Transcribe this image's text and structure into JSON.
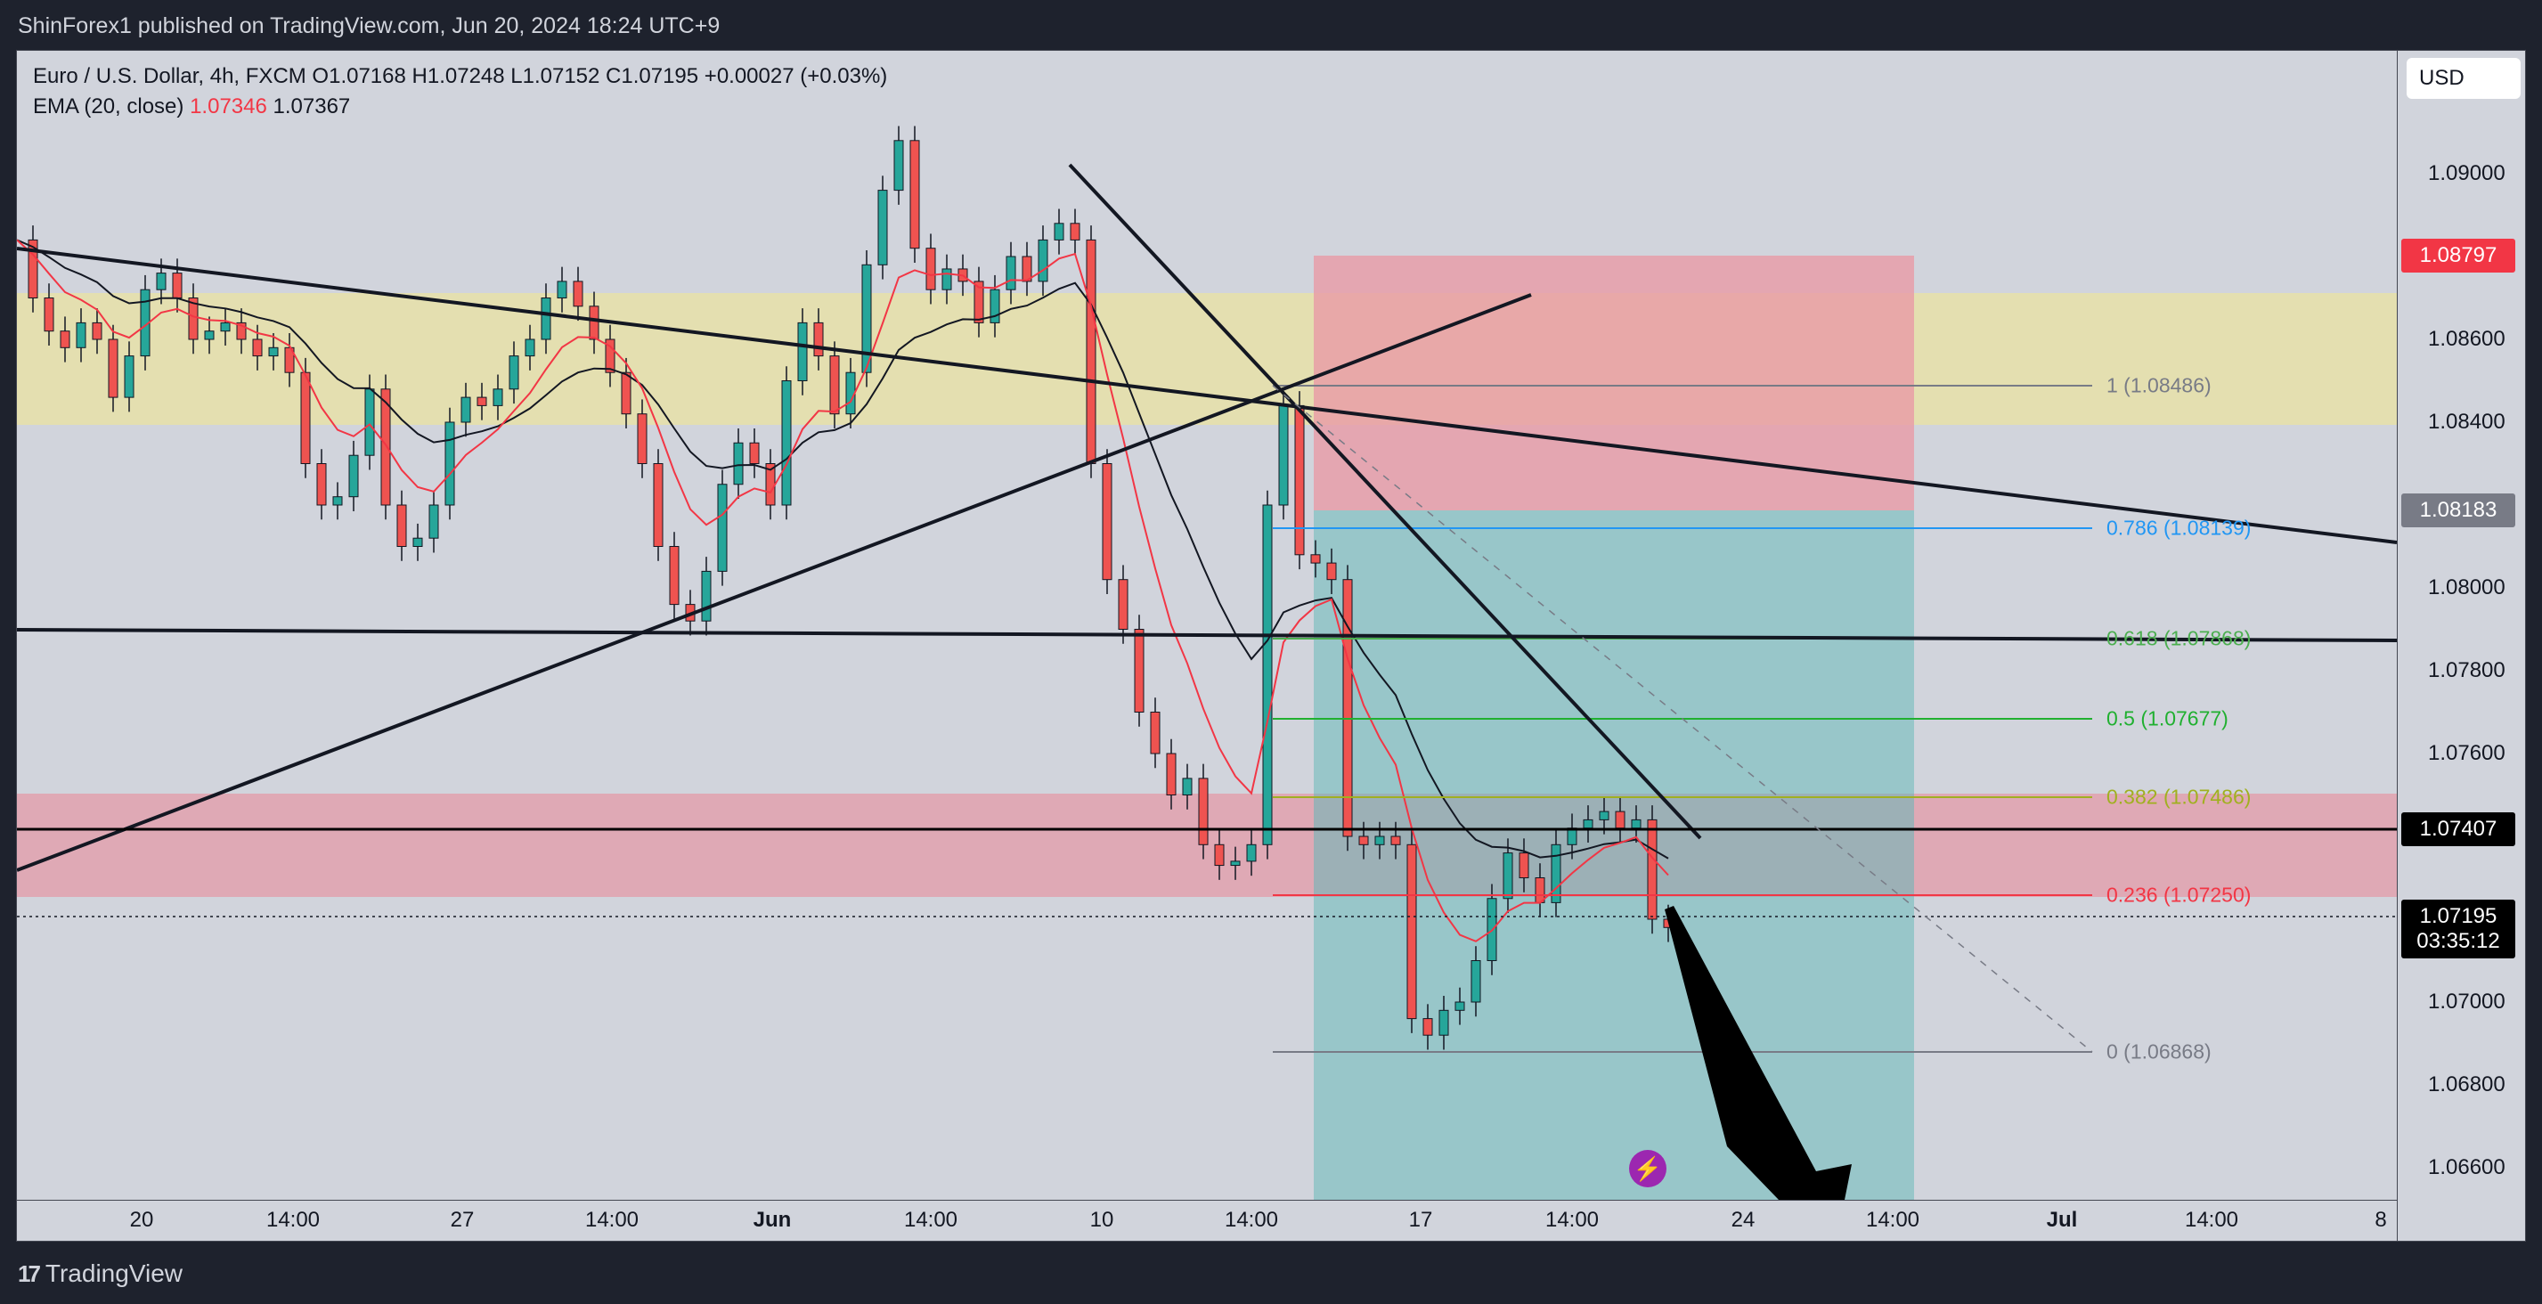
{
  "header": {
    "published_text": "ShinForex1 published on TradingView.com, Jun 20, 2024 18:24 UTC+9"
  },
  "legend": {
    "symbol_line": "Euro / U.S. Dollar, 4h, FXCM  O1.07168  H1.07248  L1.07152  C1.07195  +0.00027 (+0.03%)",
    "ema_label": "EMA (20, close)",
    "ema_value1": "1.07346",
    "ema_value2": "1.07367"
  },
  "price_axis": {
    "currency_button": "USD",
    "ticks": [
      "1.09000",
      "1.08600",
      "1.08400",
      "1.08000",
      "1.07800",
      "1.07600",
      "1.07000",
      "1.06800",
      "1.06600"
    ],
    "badges": [
      {
        "label": "1.08797",
        "bg": "#f23645",
        "fg": "#ffffff"
      },
      {
        "label": "1.08183",
        "bg": "#787b86",
        "fg": "#ffffff"
      },
      {
        "label": "1.07407",
        "bg": "#000000",
        "fg": "#ffffff"
      },
      {
        "label": "1.07195",
        "bg": "#000000",
        "fg": "#ffffff",
        "countdown": "03:35:12"
      }
    ]
  },
  "time_axis": {
    "ticks": [
      {
        "label": "20",
        "bold": false
      },
      {
        "label": "14:00",
        "bold": false
      },
      {
        "label": "27",
        "bold": false
      },
      {
        "label": "14:00",
        "bold": false
      },
      {
        "label": "Jun",
        "bold": true
      },
      {
        "label": "14:00",
        "bold": false
      },
      {
        "label": "10",
        "bold": false
      },
      {
        "label": "14:00",
        "bold": false
      },
      {
        "label": "17",
        "bold": false
      },
      {
        "label": "14:00",
        "bold": false
      },
      {
        "label": "24",
        "bold": false
      },
      {
        "label": "14:00",
        "bold": false
      },
      {
        "label": "Jul",
        "bold": true
      },
      {
        "label": "14:00",
        "bold": false
      },
      {
        "label": "8",
        "bold": false
      }
    ]
  },
  "fibonacci": {
    "levels": [
      {
        "label": "1 (1.08486)",
        "color": "#787b86"
      },
      {
        "label": "0.786 (1.08139)",
        "color": "#2196f3"
      },
      {
        "label": "0.618 (1.07868)",
        "color": "#4caf50"
      },
      {
        "label": "0.5 (1.07677)",
        "color": "#20b030"
      },
      {
        "label": "0.382 (1.07486)",
        "color": "#a0b020"
      },
      {
        "label": "0.236 (1.07250)",
        "color": "#f23645"
      },
      {
        "label": "0 (1.06868)",
        "color": "#787b86"
      }
    ]
  },
  "colors": {
    "background": "#d1d4dc",
    "up_candle": "#26a69a",
    "down_candle": "#ef5350",
    "supply_zone": "#e8e0a8",
    "demand_zone": "#e0a4b0",
    "stop_zone": "#e8a0a8",
    "target_zone": "#8cc4c4",
    "ema_red": "#f23645",
    "ema_black": "#131722"
  },
  "footer": {
    "brand": "TradingView",
    "logo_mark": "17"
  }
}
